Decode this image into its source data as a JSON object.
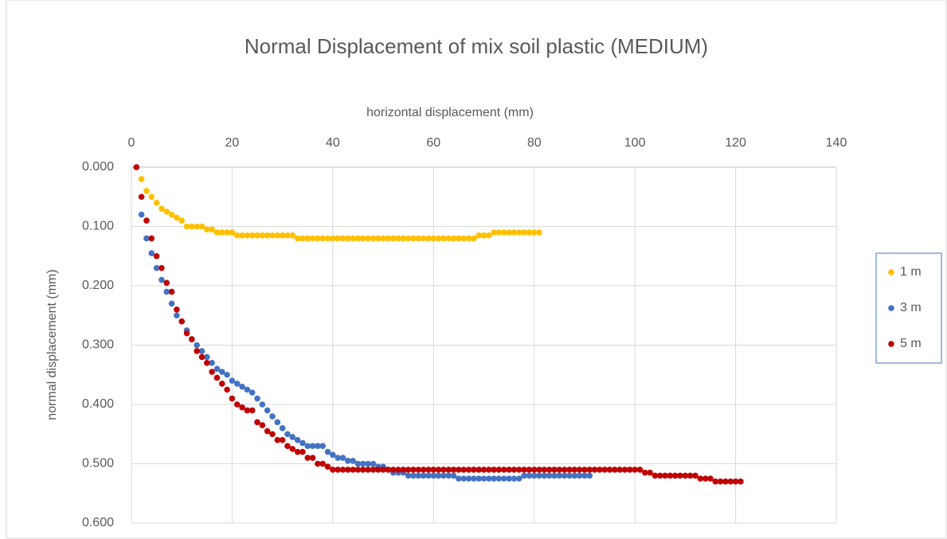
{
  "chart_data": {
    "type": "scatter",
    "title": "Normal Displacement of mix soil plastic (MEDIUM)",
    "x_label": "horizontal displacement (mm)",
    "y_label": "normal displacement (mm)",
    "xlim": [
      0,
      140
    ],
    "xticks": [
      0,
      20,
      40,
      60,
      80,
      100,
      120,
      140
    ],
    "ylim": [
      0,
      0.6
    ],
    "yticks": [
      {
        "value": 0,
        "label": "0.000"
      },
      {
        "value": 0.1,
        "label": "0.100"
      },
      {
        "value": 0.2,
        "label": "0.200"
      },
      {
        "value": 0.3,
        "label": "0.300"
      },
      {
        "value": 0.4,
        "label": "0.400"
      },
      {
        "value": 0.5,
        "label": "0.500"
      },
      {
        "value": 0.6,
        "label": "0.600"
      }
    ],
    "y_reversed": true,
    "x_axis_position": "top",
    "grid": true,
    "legend": "right",
    "series": [
      {
        "name": "1 m",
        "color": "#ffc000",
        "x": [
          1,
          2,
          3,
          4,
          5,
          6,
          7,
          8,
          9,
          10,
          11,
          12,
          13,
          14,
          15,
          16,
          17,
          18,
          19,
          20,
          21,
          22,
          23,
          24,
          25,
          26,
          27,
          28,
          29,
          30,
          31,
          32,
          33,
          34,
          35,
          36,
          37,
          38,
          39,
          40,
          41,
          42,
          43,
          44,
          45,
          46,
          47,
          48,
          49,
          50,
          51,
          52,
          53,
          54,
          55,
          56,
          57,
          58,
          59,
          60,
          61,
          62,
          63,
          64,
          65,
          66,
          67,
          68,
          69,
          70,
          71,
          72,
          73,
          74,
          75,
          76,
          77,
          78,
          79,
          80,
          81
        ],
        "values": [
          0,
          0.02,
          0.04,
          0.05,
          0.06,
          0.07,
          0.075,
          0.08,
          0.085,
          0.09,
          0.1,
          0.1,
          0.1,
          0.1,
          0.105,
          0.105,
          0.11,
          0.11,
          0.11,
          0.11,
          0.115,
          0.115,
          0.115,
          0.115,
          0.115,
          0.115,
          0.115,
          0.115,
          0.115,
          0.115,
          0.115,
          0.115,
          0.12,
          0.12,
          0.12,
          0.12,
          0.12,
          0.12,
          0.12,
          0.12,
          0.12,
          0.12,
          0.12,
          0.12,
          0.12,
          0.12,
          0.12,
          0.12,
          0.12,
          0.12,
          0.12,
          0.12,
          0.12,
          0.12,
          0.12,
          0.12,
          0.12,
          0.12,
          0.12,
          0.12,
          0.12,
          0.12,
          0.12,
          0.12,
          0.12,
          0.12,
          0.12,
          0.12,
          0.115,
          0.115,
          0.115,
          0.11,
          0.11,
          0.11,
          0.11,
          0.11,
          0.11,
          0.11,
          0.11,
          0.11,
          0.11
        ]
      },
      {
        "name": "3 m",
        "color": "#4472c4",
        "x": [
          2,
          3,
          4,
          5,
          6,
          7,
          8,
          9,
          10,
          11,
          12,
          13,
          14,
          15,
          16,
          17,
          18,
          19,
          20,
          21,
          22,
          23,
          24,
          25,
          26,
          27,
          28,
          29,
          30,
          31,
          32,
          33,
          34,
          35,
          36,
          37,
          38,
          39,
          40,
          41,
          42,
          43,
          44,
          45,
          46,
          47,
          48,
          49,
          50,
          51,
          52,
          53,
          54,
          55,
          56,
          57,
          58,
          59,
          60,
          61,
          62,
          63,
          64,
          65,
          66,
          67,
          68,
          69,
          70,
          71,
          72,
          73,
          74,
          75,
          76,
          77,
          78,
          79,
          80,
          81,
          82,
          83,
          84,
          85,
          86,
          87,
          88,
          89,
          90,
          91
        ],
        "values": [
          0.08,
          0.12,
          0.145,
          0.17,
          0.19,
          0.21,
          0.23,
          0.25,
          0.26,
          0.275,
          0.29,
          0.3,
          0.31,
          0.32,
          0.33,
          0.34,
          0.345,
          0.35,
          0.36,
          0.365,
          0.37,
          0.375,
          0.38,
          0.39,
          0.4,
          0.41,
          0.42,
          0.43,
          0.44,
          0.45,
          0.455,
          0.46,
          0.465,
          0.47,
          0.47,
          0.47,
          0.47,
          0.48,
          0.485,
          0.49,
          0.49,
          0.495,
          0.495,
          0.5,
          0.5,
          0.5,
          0.5,
          0.505,
          0.505,
          0.51,
          0.515,
          0.515,
          0.515,
          0.52,
          0.52,
          0.52,
          0.52,
          0.52,
          0.52,
          0.52,
          0.52,
          0.52,
          0.52,
          0.525,
          0.525,
          0.525,
          0.525,
          0.525,
          0.525,
          0.525,
          0.525,
          0.525,
          0.525,
          0.525,
          0.525,
          0.525,
          0.52,
          0.52,
          0.52,
          0.52,
          0.52,
          0.52,
          0.52,
          0.52,
          0.52,
          0.52,
          0.52,
          0.52,
          0.52,
          0.52
        ]
      },
      {
        "name": "5 m",
        "color": "#c00000",
        "x": [
          1,
          2,
          3,
          4,
          5,
          6,
          7,
          8,
          9,
          10,
          11,
          12,
          13,
          14,
          15,
          16,
          17,
          18,
          19,
          20,
          21,
          22,
          23,
          24,
          25,
          26,
          27,
          28,
          29,
          30,
          31,
          32,
          33,
          34,
          35,
          36,
          37,
          38,
          39,
          40,
          41,
          42,
          43,
          44,
          45,
          46,
          47,
          48,
          49,
          50,
          51,
          52,
          53,
          54,
          55,
          56,
          57,
          58,
          59,
          60,
          61,
          62,
          63,
          64,
          65,
          66,
          67,
          68,
          69,
          70,
          71,
          72,
          73,
          74,
          75,
          76,
          77,
          78,
          79,
          80,
          81,
          82,
          83,
          84,
          85,
          86,
          87,
          88,
          89,
          90,
          91,
          92,
          93,
          94,
          95,
          96,
          97,
          98,
          99,
          100,
          101,
          102,
          103,
          104,
          105,
          106,
          107,
          108,
          109,
          110,
          111,
          112,
          113,
          114,
          115,
          116,
          117,
          118,
          119,
          120,
          121
        ],
        "values": [
          0,
          0.05,
          0.09,
          0.12,
          0.15,
          0.17,
          0.195,
          0.21,
          0.24,
          0.26,
          0.28,
          0.29,
          0.31,
          0.32,
          0.33,
          0.345,
          0.355,
          0.365,
          0.375,
          0.39,
          0.4,
          0.405,
          0.41,
          0.41,
          0.43,
          0.435,
          0.445,
          0.45,
          0.46,
          0.46,
          0.47,
          0.475,
          0.48,
          0.48,
          0.49,
          0.49,
          0.5,
          0.5,
          0.505,
          0.51,
          0.51,
          0.51,
          0.51,
          0.51,
          0.51,
          0.51,
          0.51,
          0.51,
          0.51,
          0.51,
          0.51,
          0.51,
          0.51,
          0.51,
          0.51,
          0.51,
          0.51,
          0.51,
          0.51,
          0.51,
          0.51,
          0.51,
          0.51,
          0.51,
          0.51,
          0.51,
          0.51,
          0.51,
          0.51,
          0.51,
          0.51,
          0.51,
          0.51,
          0.51,
          0.51,
          0.51,
          0.51,
          0.51,
          0.51,
          0.51,
          0.51,
          0.51,
          0.51,
          0.51,
          0.51,
          0.51,
          0.51,
          0.51,
          0.51,
          0.51,
          0.51,
          0.51,
          0.51,
          0.51,
          0.51,
          0.51,
          0.51,
          0.51,
          0.51,
          0.51,
          0.51,
          0.515,
          0.515,
          0.52,
          0.52,
          0.52,
          0.52,
          0.52,
          0.52,
          0.52,
          0.52,
          0.52,
          0.525,
          0.525,
          0.525,
          0.53,
          0.53,
          0.53,
          0.53,
          0.53,
          0.53
        ]
      }
    ]
  }
}
